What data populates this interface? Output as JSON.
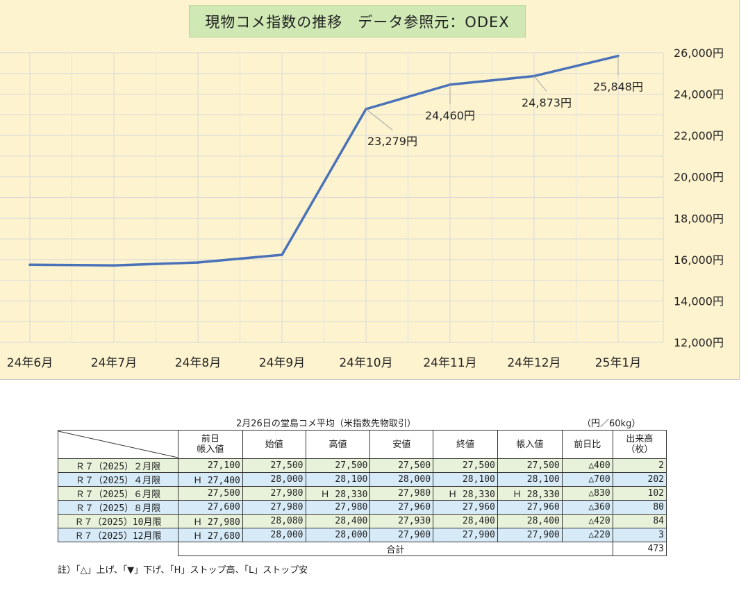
{
  "chart_title": "現物コメ指数の推移　データ参照元：ODEX",
  "chart_data": {
    "type": "line",
    "title": "現物コメ指数の推移　データ参照元：ODEX",
    "categories": [
      "24年6月",
      "24年7月",
      "24年8月",
      "24年9月",
      "24年10月",
      "24年11月",
      "24年12月",
      "25年1月"
    ],
    "series": [
      {
        "values": [
          15750,
          15720,
          15860,
          16230,
          23279,
          24460,
          24873,
          25848
        ]
      }
    ],
    "data_labels": [
      "",
      "",
      "",
      "",
      "23,279円",
      "24,460円",
      "24,873円",
      "25,848円"
    ],
    "y_ticks": [
      "12,000円",
      "14,000円",
      "16,000円",
      "18,000円",
      "20,000円",
      "22,000円",
      "24,000円",
      "26,000円"
    ],
    "ylim": [
      12000,
      26000
    ],
    "y_axis_side": "right",
    "grid": true,
    "line_color": "#4a72b8"
  },
  "table": {
    "caption": "2月26日の堂島コメ平均（米指数先物取引）",
    "unit": "（円／60kg）",
    "headers": [
      "前日\n帳入値",
      "始値",
      "高値",
      "安値",
      "終値",
      "帳入値",
      "前日比",
      "出来高\n（枚）"
    ],
    "rows": [
      [
        "Ｒ７（2025）２月限",
        "27,100",
        "27,500",
        "27,500",
        "27,500",
        "27,500",
        "27,500",
        "△400",
        "2"
      ],
      [
        "Ｒ７（2025）４月限",
        "Ｈ 27,400",
        "28,000",
        "28,100",
        "28,000",
        "28,100",
        "28,100",
        "△700",
        "202"
      ],
      [
        "Ｒ７（2025）６月限",
        "27,500",
        "27,980",
        "Ｈ 28,330",
        "27,980",
        "Ｈ 28,330",
        "Ｈ 28,330",
        "△830",
        "102"
      ],
      [
        "Ｒ７（2025）８月限",
        "27,600",
        "27,980",
        "27,980",
        "27,960",
        "27,960",
        "27,960",
        "△360",
        "80"
      ],
      [
        "Ｒ７（2025）10月限",
        "Ｈ 27,980",
        "28,080",
        "28,400",
        "27,930",
        "28,400",
        "28,400",
        "△420",
        "84"
      ],
      [
        "Ｒ７（2025）12月限",
        "Ｈ 27,680",
        "28,000",
        "28,000",
        "27,900",
        "27,900",
        "27,900",
        "△220",
        "3"
      ]
    ],
    "total_label": "合計",
    "total_value": "473",
    "note": "註）「△」上げ、「▼」下げ、「H」ストップ高、「L」ストップ安"
  }
}
